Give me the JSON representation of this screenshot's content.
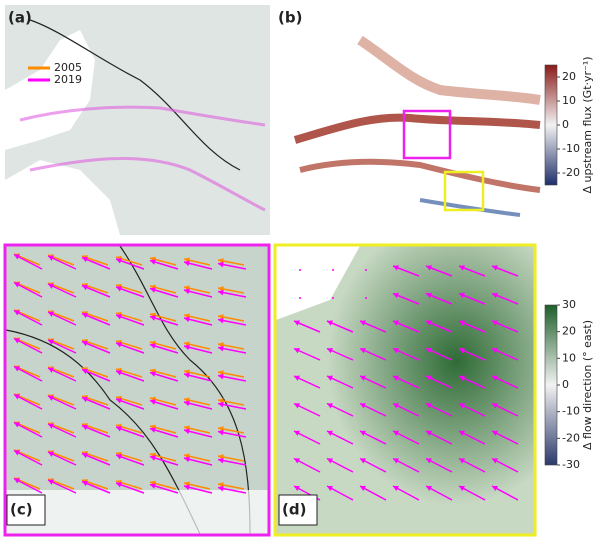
{
  "panels": [
    {
      "label": "(a)",
      "border": "none"
    },
    {
      "label": "(b)",
      "border": "none"
    },
    {
      "label": "(c)",
      "border": "#ee22ee"
    },
    {
      "label": "(d)",
      "border": "#eeee22"
    }
  ],
  "legend": [
    {
      "name": "2005",
      "color": "#ff8c00"
    },
    {
      "name": "2019",
      "color": "#ff00ff"
    }
  ],
  "colorbars": [
    {
      "label": "Δ upstream flux (Gt·yr⁻¹)",
      "lim": [
        -25,
        25
      ],
      "ticks": [
        20,
        10,
        0,
        -10,
        -20
      ],
      "colors": [
        "#1f2f6b",
        "#f2f2f2",
        "#8b1a1a"
      ]
    },
    {
      "label": "Δ flow direction (° east)",
      "lim": [
        -30,
        30
      ],
      "ticks": [
        30,
        20,
        10,
        0,
        -10,
        -20,
        -30
      ],
      "colors": [
        "#2b3a6b",
        "#f2f2f2",
        "#1e5f2a"
      ]
    }
  ]
}
